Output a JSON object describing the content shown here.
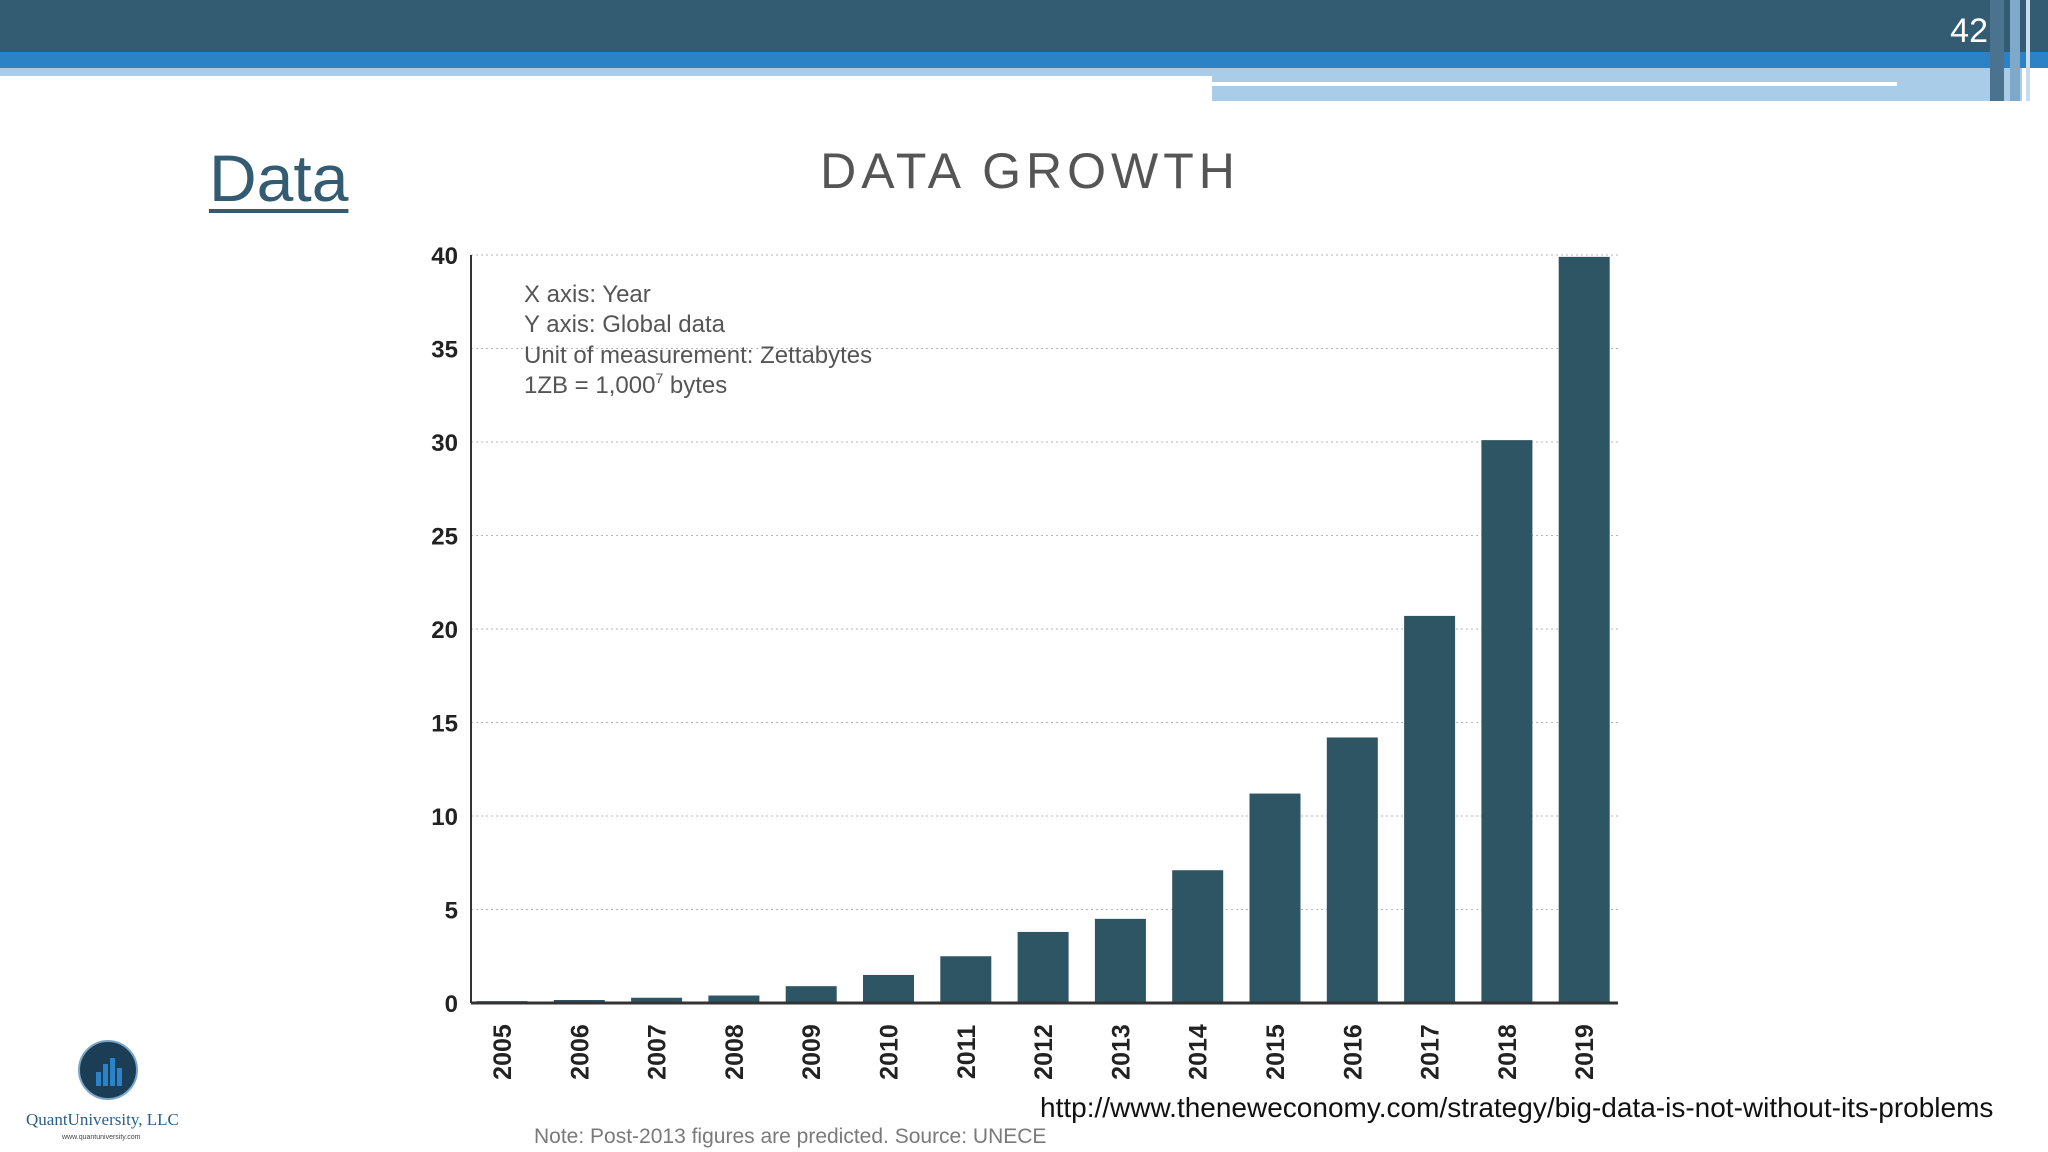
{
  "slide": {
    "number": "42",
    "title": "Data",
    "source_url": "http://www.theneweconomy.com/strategy/big-data-is-not-without-its-problems"
  },
  "logo": {
    "name": "QuantUniversity, LLC",
    "url": "www.quantuniversity.com"
  },
  "colors": {
    "banner_dark": "#335b72",
    "banner_blue": "#2b82c6",
    "bar": "#2e5563",
    "title": "#335b72"
  },
  "chart_data": {
    "type": "bar",
    "title": "DATA GROWTH",
    "categories": [
      "2005",
      "2006",
      "2007",
      "2008",
      "2009",
      "2010",
      "2011",
      "2012",
      "2013",
      "2014",
      "2015",
      "2016",
      "2017",
      "2018",
      "2019"
    ],
    "values": [
      0.1,
      0.16,
      0.28,
      0.4,
      0.9,
      1.5,
      2.5,
      3.8,
      4.5,
      7.1,
      11.2,
      14.2,
      20.7,
      30.1,
      39.9
    ],
    "ylim": [
      0,
      40
    ],
    "yticks": [
      0,
      5,
      10,
      15,
      20,
      25,
      30,
      35,
      40
    ],
    "xlabel": "",
    "ylabel": "",
    "grid": "horizontal-dotted",
    "annotations": [
      "X axis: Year",
      "Y axis: Global data",
      "Unit of measurement: Zettabytes",
      "1ZB = 1,000",
      "7",
      " bytes"
    ],
    "note": "Note: Post-2013 figures are predicted. Source: UNECE"
  }
}
